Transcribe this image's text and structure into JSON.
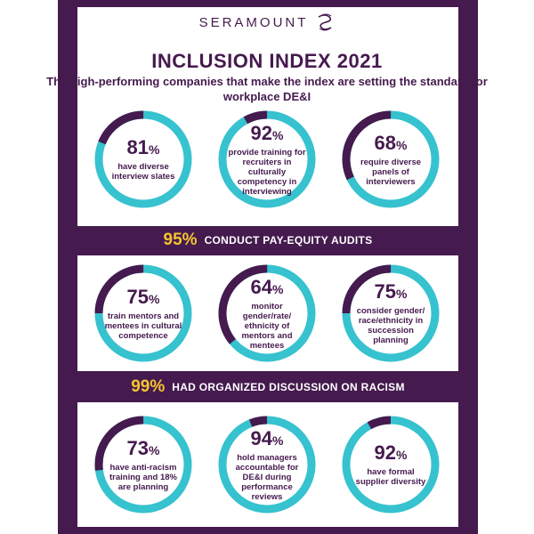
{
  "brand": {
    "name": "SERAMOUNT",
    "logo_icon": "seramount-wave-icon",
    "colors": {
      "purple": "#451a4e",
      "teal": "#36c2cf",
      "gold": "#f4c531"
    }
  },
  "title": "INCLUSION INDEX 2021",
  "subtitle": "The high-performing companies that make the index are setting the standard for workplace DE&I",
  "rows": [
    {
      "stats": [
        {
          "value": 81,
          "number": "81",
          "desc": "have diverse interview slates"
        },
        {
          "value": 92,
          "number": "92",
          "desc": "provide training for recruiters in culturally competency in interviewing"
        },
        {
          "value": 68,
          "number": "68",
          "desc": "require diverse panels of interviewers"
        }
      ]
    },
    {
      "stats": [
        {
          "value": 75,
          "number": "75",
          "desc": "train mentors and mentees in cultural competence"
        },
        {
          "value": 64,
          "number": "64",
          "desc": "monitor gender/rate/ ethnicity of mentors and mentees"
        },
        {
          "value": 75,
          "number": "75",
          "desc": "consider gender/ race/ethnicity in succession planning"
        }
      ]
    },
    {
      "stats": [
        {
          "value": 73,
          "number": "73",
          "desc": "have anti-racism training and 18% are planning"
        },
        {
          "value": 94,
          "number": "94",
          "desc": "hold managers accountable for DE&I during performance reviews"
        },
        {
          "value": 92,
          "number": "92",
          "desc": "have formal supplier diversity"
        }
      ]
    }
  ],
  "percent_symbol": "%",
  "banners": [
    {
      "pct": "95%",
      "text": "CONDUCT PAY-EQUITY AUDITS"
    },
    {
      "pct": "99%",
      "text": "HAD ORGANIZED DISCUSSION ON RACISM"
    }
  ]
}
